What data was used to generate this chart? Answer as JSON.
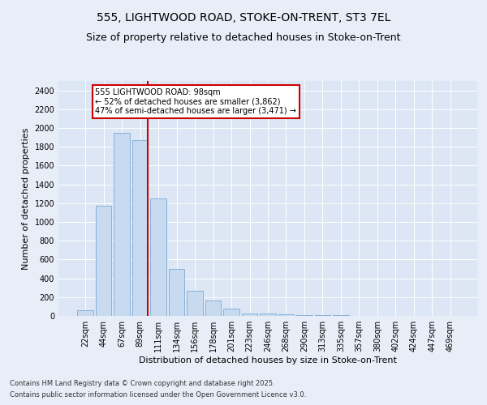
{
  "title1": "555, LIGHTWOOD ROAD, STOKE-ON-TRENT, ST3 7EL",
  "title2": "Size of property relative to detached houses in Stoke-on-Trent",
  "xlabel": "Distribution of detached houses by size in Stoke-on-Trent",
  "ylabel": "Number of detached properties",
  "bar_labels": [
    "22sqm",
    "44sqm",
    "67sqm",
    "89sqm",
    "111sqm",
    "134sqm",
    "156sqm",
    "178sqm",
    "201sqm",
    "223sqm",
    "246sqm",
    "268sqm",
    "290sqm",
    "313sqm",
    "335sqm",
    "357sqm",
    "380sqm",
    "402sqm",
    "424sqm",
    "447sqm",
    "469sqm"
  ],
  "bar_values": [
    60,
    1175,
    1950,
    1875,
    1250,
    500,
    270,
    165,
    80,
    30,
    25,
    15,
    5,
    5,
    10,
    3,
    3,
    1,
    1,
    1,
    0
  ],
  "bar_color": "#c8daf0",
  "bar_edge_color": "#7aabd4",
  "vline_color": "#cc0000",
  "annotation_text": "555 LIGHTWOOD ROAD: 98sqm\n← 52% of detached houses are smaller (3,862)\n47% of semi-detached houses are larger (3,471) →",
  "annotation_box_color": "#ffffff",
  "annotation_box_edge_color": "#cc0000",
  "ylim": [
    0,
    2500
  ],
  "yticks": [
    0,
    200,
    400,
    600,
    800,
    1000,
    1200,
    1400,
    1600,
    1800,
    2000,
    2200,
    2400
  ],
  "footnote1": "Contains HM Land Registry data © Crown copyright and database right 2025.",
  "footnote2": "Contains public sector information licensed under the Open Government Licence v3.0.",
  "bg_color": "#e8eef8",
  "plot_bg_color": "#dde6f4",
  "title_fontsize": 10,
  "subtitle_fontsize": 9,
  "label_fontsize": 8,
  "tick_fontsize": 7,
  "annot_fontsize": 7
}
